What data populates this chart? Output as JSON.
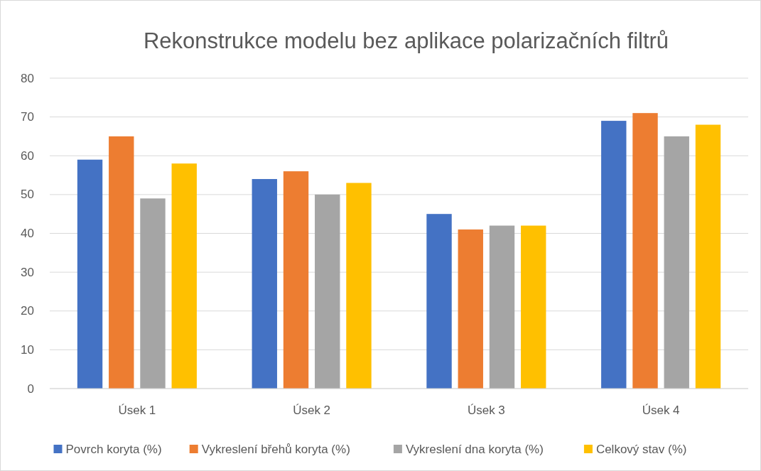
{
  "chart_data": {
    "type": "bar",
    "title": "Rekonstrukce modelu bez aplikace polarizačních filtrů",
    "categories": [
      "Úsek 1",
      "Úsek 2",
      "Úsek 3",
      "Úsek 4"
    ],
    "series": [
      {
        "name": "Povrch koryta (%)",
        "color": "#4472c4",
        "values": [
          59,
          54,
          45,
          69
        ]
      },
      {
        "name": "Vykreslení břehů koryta (%)",
        "color": "#ed7d31",
        "values": [
          65,
          56,
          41,
          71
        ]
      },
      {
        "name": "Vykreslení dna koryta (%)",
        "color": "#a5a5a5",
        "values": [
          49,
          50,
          42,
          65
        ]
      },
      {
        "name": "Celkový stav (%)",
        "color": "#ffc000",
        "values": [
          58,
          53,
          42,
          68
        ]
      }
    ],
    "ylim": [
      0,
      80
    ],
    "yticks": [
      0,
      10,
      20,
      30,
      40,
      50,
      60,
      70,
      80
    ],
    "grid": "y",
    "legend": "bottom"
  }
}
